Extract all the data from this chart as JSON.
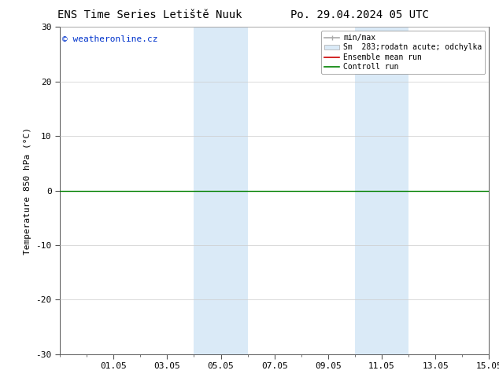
{
  "title_left": "ENS Time Series Letiště Nuuk",
  "title_right": "Po. 29.04.2024 05 UTC",
  "ylabel": "Temperature 850 hPa (°C)",
  "watermark": "© weatheronline.cz",
  "ylim": [
    -30,
    30
  ],
  "yticks": [
    -30,
    -20,
    -10,
    0,
    10,
    20,
    30
  ],
  "xlim": [
    0,
    16
  ],
  "xtick_labels": [
    "01.05",
    "03.05",
    "05.05",
    "07.05",
    "09.05",
    "11.05",
    "13.05",
    "15.05"
  ],
  "xtick_positions": [
    2,
    4,
    6,
    8,
    10,
    12,
    14,
    16
  ],
  "shaded_regions": [
    {
      "x_start": 5,
      "x_end": 7
    },
    {
      "x_start": 11,
      "x_end": 13
    }
  ],
  "shaded_color": "#daeaf7",
  "legend_labels": [
    "min/max",
    "Sm  283;rodatn acute; odchylka",
    "Ensemble mean run",
    "Controll run"
  ],
  "legend_line_colors": [
    "#aaaaaa",
    "#c8dcea",
    "#cc0000",
    "#008000"
  ],
  "legend_rect_color": "#daeaf7",
  "zero_line_color": "#008000",
  "background_color": "#ffffff",
  "plot_bg_color": "#ffffff",
  "grid_color": "#cccccc",
  "title_fontsize": 10,
  "label_fontsize": 8,
  "tick_fontsize": 8,
  "legend_fontsize": 7,
  "watermark_color": "#0033cc",
  "watermark_fontsize": 8
}
